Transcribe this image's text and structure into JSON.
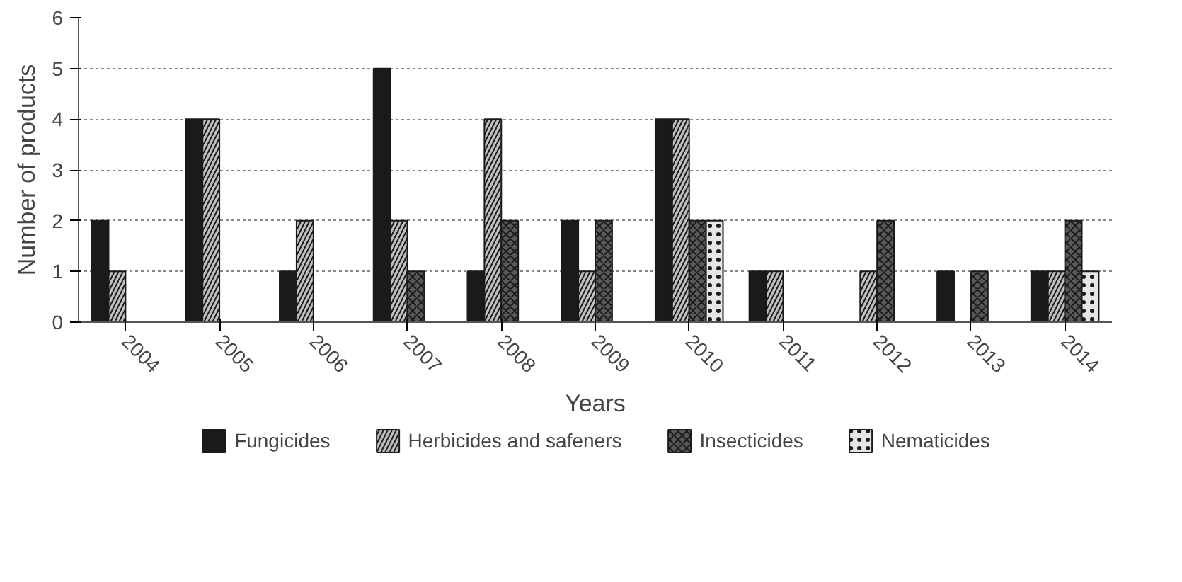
{
  "chart_data": {
    "type": "bar",
    "xlabel": "Years",
    "ylabel": "Number of products",
    "categories": [
      "2004",
      "2005",
      "2006",
      "2007",
      "2008",
      "2009",
      "2010",
      "2011",
      "2012",
      "2013",
      "2014"
    ],
    "series": [
      {
        "name": "Fungicides",
        "color": "#1a1a1a",
        "values": [
          2,
          4,
          1,
          5,
          1,
          2,
          4,
          1,
          0,
          1,
          1
        ]
      },
      {
        "name": "Herbicides and safeners",
        "color": "#bfbfbf",
        "values": [
          1,
          4,
          2,
          2,
          4,
          1,
          4,
          1,
          1,
          0,
          1
        ]
      },
      {
        "name": "Insecticides",
        "color": "#595959",
        "values": [
          0,
          0,
          0,
          1,
          2,
          2,
          2,
          0,
          2,
          1,
          2
        ]
      },
      {
        "name": "Nematicides",
        "color": "#e6e6e6",
        "values": [
          0,
          0,
          0,
          0,
          0,
          0,
          2,
          0,
          0,
          0,
          1
        ]
      }
    ],
    "ylim": [
      0,
      6
    ],
    "yticks": [
      0,
      1,
      2,
      3,
      4,
      5,
      6
    ],
    "grid": "y",
    "legend": "bottom"
  }
}
